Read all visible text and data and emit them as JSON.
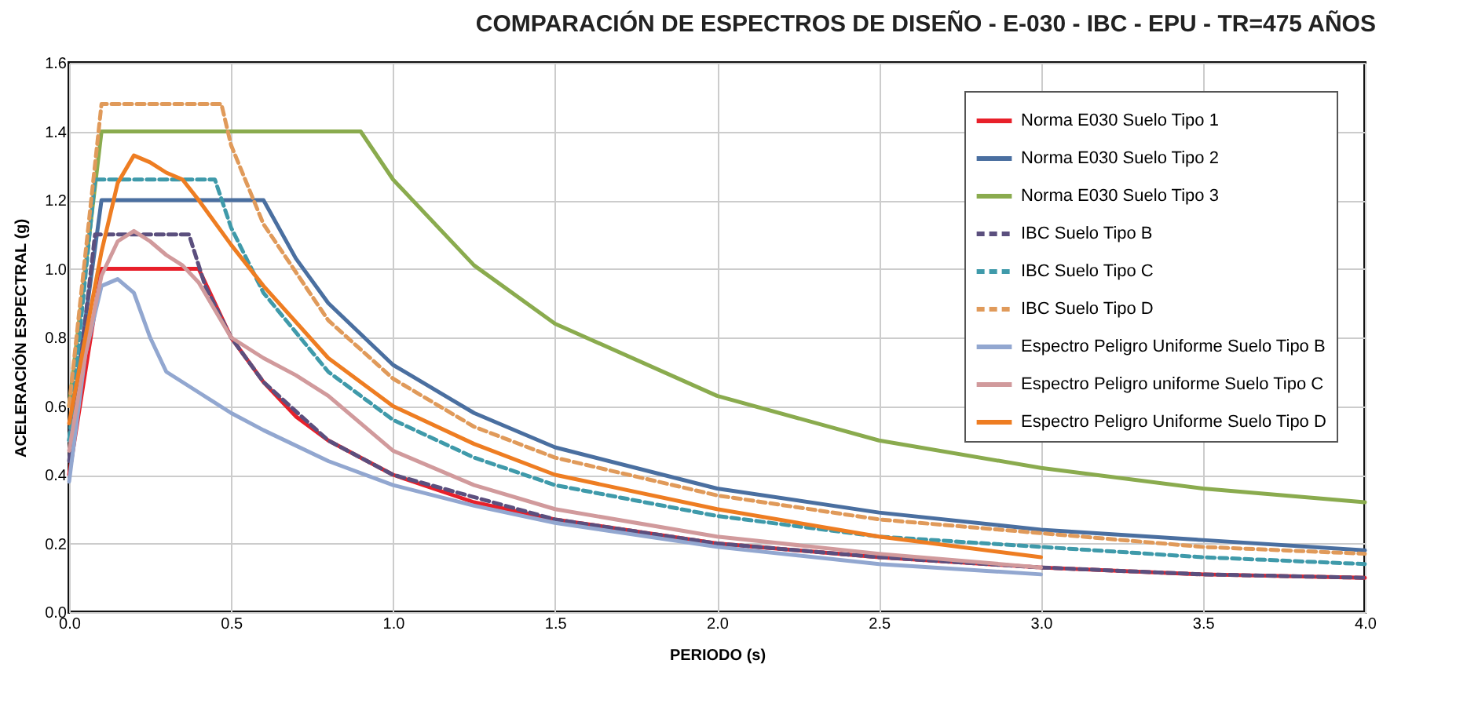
{
  "chart_data": {
    "type": "line",
    "title": "COMPARACIÓN DE ESPECTROS DE DISEÑO - E-030 - IBC - EPU -  TR=475 AÑOS",
    "xlabel": "PERIODO (s)",
    "ylabel": "ACELERACIÓN ESPECTRAL (g)",
    "xlim": [
      0,
      4
    ],
    "xticks": [
      {
        "value": 0,
        "label": "0.0"
      },
      0.5,
      {
        "value": 1,
        "label": "1.0"
      },
      1.5,
      {
        "value": 2,
        "label": "2.0"
      },
      2.5,
      {
        "value": 3,
        "label": "3.0"
      },
      3.5,
      {
        "value": 4,
        "label": "4.0"
      }
    ],
    "ylim": [
      0,
      1.6
    ],
    "yticks": [
      {
        "value": 0,
        "label": "0.0"
      },
      0.2,
      0.4,
      0.6,
      0.8,
      {
        "value": 1,
        "label": "1.0"
      },
      1.2,
      1.4,
      1.6
    ],
    "grid": true,
    "legend": "top right",
    "series": [
      {
        "name": "Norma E030 Suelo Tipo 1",
        "color": "#e8202a",
        "line_style": "solid",
        "x": [
          0,
          0.1,
          0.4,
          0.5,
          0.6,
          0.7,
          0.8,
          1.0,
          1.25,
          1.5,
          2,
          2.5,
          3,
          3.5,
          4
        ],
        "values": [
          0.4,
          1.0,
          1.0,
          0.8,
          0.67,
          0.57,
          0.5,
          0.4,
          0.32,
          0.27,
          0.2,
          0.16,
          0.13,
          0.11,
          0.1
        ]
      },
      {
        "name": "Norma E030 Suelo Tipo 2",
        "color": "#4a6fa0",
        "line_style": "solid",
        "x": [
          0,
          0.1,
          0.6,
          0.7,
          0.8,
          1.0,
          1.25,
          1.5,
          2,
          2.5,
          3,
          3.5,
          4
        ],
        "values": [
          0.5,
          1.2,
          1.2,
          1.03,
          0.9,
          0.72,
          0.58,
          0.48,
          0.36,
          0.29,
          0.24,
          0.21,
          0.18
        ]
      },
      {
        "name": "Norma E030 Suelo Tipo 3",
        "color": "#8aab4e",
        "line_style": "solid",
        "x": [
          0,
          0.1,
          0.9,
          1.0,
          1.25,
          1.5,
          2,
          2.5,
          3,
          3.5,
          4
        ],
        "values": [
          0.6,
          1.4,
          1.4,
          1.26,
          1.01,
          0.84,
          0.63,
          0.5,
          0.42,
          0.36,
          0.32
        ]
      },
      {
        "name": "IBC Suelo Tipo B",
        "color": "#5b4f7e",
        "line_style": "dashed",
        "x": [
          0,
          0.08,
          0.37,
          0.42,
          0.5,
          0.6,
          0.8,
          1.0,
          1.5,
          2,
          2.5,
          3,
          3.5,
          4
        ],
        "values": [
          0.44,
          1.1,
          1.1,
          0.95,
          0.8,
          0.67,
          0.5,
          0.4,
          0.27,
          0.2,
          0.16,
          0.13,
          0.11,
          0.1
        ]
      },
      {
        "name": "IBC Suelo Tipo C",
        "color": "#3f9aaa",
        "line_style": "dashed",
        "x": [
          0,
          0.08,
          0.45,
          0.5,
          0.6,
          0.8,
          1.0,
          1.25,
          1.5,
          2,
          2.5,
          3,
          3.5,
          4
        ],
        "values": [
          0.5,
          1.26,
          1.26,
          1.12,
          0.93,
          0.7,
          0.56,
          0.45,
          0.37,
          0.28,
          0.22,
          0.19,
          0.16,
          0.14
        ]
      },
      {
        "name": "IBC Suelo Tipo D",
        "color": "#e09a5a",
        "line_style": "dashed",
        "x": [
          0,
          0.1,
          0.47,
          0.5,
          0.6,
          0.8,
          1.0,
          1.25,
          1.5,
          2,
          2.5,
          3,
          3.5,
          4
        ],
        "values": [
          0.6,
          1.48,
          1.48,
          1.36,
          1.13,
          0.85,
          0.68,
          0.54,
          0.45,
          0.34,
          0.27,
          0.23,
          0.19,
          0.17
        ]
      },
      {
        "name": "Espectro Peligro Uniforme Suelo Tipo B",
        "color": "#92a7d0",
        "line_style": "solid",
        "x": [
          0,
          0.05,
          0.1,
          0.15,
          0.2,
          0.25,
          0.3,
          0.4,
          0.5,
          0.6,
          0.8,
          1.0,
          1.25,
          1.5,
          2,
          2.5,
          3
        ],
        "values": [
          0.38,
          0.75,
          0.95,
          0.97,
          0.93,
          0.8,
          0.7,
          0.64,
          0.58,
          0.53,
          0.44,
          0.37,
          0.31,
          0.26,
          0.19,
          0.14,
          0.11
        ]
      },
      {
        "name": "Espectro Peligro uniforme Suelo Tipo C",
        "color": "#d19a9c",
        "line_style": "solid",
        "x": [
          0,
          0.05,
          0.1,
          0.15,
          0.2,
          0.25,
          0.3,
          0.35,
          0.4,
          0.5,
          0.6,
          0.7,
          0.8,
          1.0,
          1.25,
          1.5,
          2,
          2.5,
          3
        ],
        "values": [
          0.47,
          0.75,
          0.98,
          1.08,
          1.11,
          1.08,
          1.04,
          1.01,
          0.96,
          0.8,
          0.74,
          0.69,
          0.63,
          0.47,
          0.37,
          0.3,
          0.22,
          0.17,
          0.13
        ]
      },
      {
        "name": "Espectro Peligro Uniforme Suelo Tipo D",
        "color": "#ee7d22",
        "line_style": "solid",
        "x": [
          0,
          0.05,
          0.1,
          0.15,
          0.2,
          0.25,
          0.3,
          0.35,
          0.4,
          0.5,
          0.6,
          0.8,
          1.0,
          1.25,
          1.5,
          2,
          2.5,
          3
        ],
        "values": [
          0.55,
          0.8,
          1.05,
          1.25,
          1.33,
          1.31,
          1.28,
          1.26,
          1.2,
          1.07,
          0.95,
          0.74,
          0.6,
          0.49,
          0.4,
          0.3,
          0.22,
          0.16
        ]
      }
    ]
  }
}
